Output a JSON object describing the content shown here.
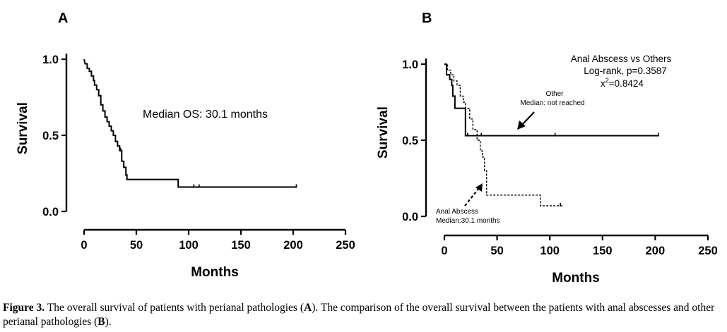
{
  "chart_data": [
    {
      "type": "line",
      "panel_label": "A",
      "xlabel": "Months",
      "ylabel": "Survival",
      "xlim": [
        0,
        250
      ],
      "ylim": [
        0.0,
        1.0
      ],
      "xticks": [
        0,
        50,
        100,
        150,
        200,
        250
      ],
      "yticks": [
        0.0,
        0.5,
        1.0
      ],
      "xtick_labels": [
        "0",
        "50",
        "100",
        "150",
        "200",
        "250"
      ],
      "ytick_labels": [
        "0.0",
        "0.5",
        "1.0"
      ],
      "grid": false,
      "step": true,
      "annotations": [
        {
          "text": "Median OS: 30.1 months"
        }
      ],
      "series": [
        {
          "style": "solid",
          "points": [
            [
              0,
              1.0
            ],
            [
              1,
              0.97
            ],
            [
              3,
              0.97
            ],
            [
              3,
              0.94
            ],
            [
              5,
              0.94
            ],
            [
              5,
              0.92
            ],
            [
              7,
              0.92
            ],
            [
              7,
              0.89
            ],
            [
              9,
              0.89
            ],
            [
              9,
              0.86
            ],
            [
              10,
              0.86
            ],
            [
              10,
              0.83
            ],
            [
              12,
              0.83
            ],
            [
              12,
              0.8
            ],
            [
              14,
              0.8
            ],
            [
              14,
              0.76
            ],
            [
              16,
              0.76
            ],
            [
              16,
              0.7
            ],
            [
              18,
              0.7
            ],
            [
              18,
              0.66
            ],
            [
              20,
              0.66
            ],
            [
              20,
              0.62
            ],
            [
              22,
              0.62
            ],
            [
              22,
              0.59
            ],
            [
              24,
              0.59
            ],
            [
              24,
              0.56
            ],
            [
              26,
              0.56
            ],
            [
              26,
              0.53
            ],
            [
              28,
              0.53
            ],
            [
              28,
              0.5
            ],
            [
              30,
              0.5
            ],
            [
              30,
              0.46
            ],
            [
              32,
              0.46
            ],
            [
              32,
              0.43
            ],
            [
              34,
              0.43
            ],
            [
              34,
              0.4
            ],
            [
              36,
              0.4
            ],
            [
              36,
              0.33
            ],
            [
              38,
              0.33
            ],
            [
              38,
              0.29
            ],
            [
              40,
              0.29
            ],
            [
              40,
              0.24
            ],
            [
              41,
              0.24
            ],
            [
              41,
              0.21
            ],
            [
              90,
              0.21
            ],
            [
              90,
              0.16
            ],
            [
              203,
              0.16
            ]
          ],
          "censor_x": [
            35,
            105,
            110,
            203
          ]
        }
      ]
    },
    {
      "type": "line",
      "panel_label": "B",
      "xlabel": "Months",
      "ylabel": "Survival",
      "xlim": [
        0,
        250
      ],
      "ylim": [
        0.0,
        1.0
      ],
      "xticks": [
        0,
        50,
        100,
        150,
        200,
        250
      ],
      "yticks": [
        0.0,
        0.5,
        1.0
      ],
      "xtick_labels": [
        "0",
        "50",
        "100",
        "150",
        "200",
        "250"
      ],
      "ytick_labels": [
        "0.0",
        "0.5",
        "1.0"
      ],
      "grid": false,
      "step": true,
      "stats_text": [
        "Anal Abscess vs Others",
        "Log-rank, p=0.3587",
        "=0.8424"
      ],
      "stats_chi_symbol": "x",
      "stats_chi_exp": "2",
      "annotations": [
        {
          "text": "Other",
          "subtext": "Median: not reached"
        },
        {
          "text": "Anal Abscess",
          "subtext": "Median:30.1 months"
        }
      ],
      "series": [
        {
          "style": "solid",
          "points": [
            [
              0,
              1.0
            ],
            [
              2,
              1.0
            ],
            [
              2,
              0.93
            ],
            [
              5,
              0.93
            ],
            [
              5,
              0.9
            ],
            [
              7,
              0.9
            ],
            [
              7,
              0.86
            ],
            [
              8,
              0.86
            ],
            [
              8,
              0.79
            ],
            [
              10,
              0.79
            ],
            [
              10,
              0.71
            ],
            [
              20,
              0.71
            ],
            [
              20,
              0.53
            ],
            [
              203,
              0.53
            ]
          ],
          "censor_x": [
            22,
            35,
            105,
            203
          ]
        },
        {
          "style": "dashed",
          "points": [
            [
              0,
              1.0
            ],
            [
              3,
              1.0
            ],
            [
              3,
              0.96
            ],
            [
              6,
              0.96
            ],
            [
              6,
              0.93
            ],
            [
              9,
              0.93
            ],
            [
              9,
              0.89
            ],
            [
              12,
              0.89
            ],
            [
              12,
              0.86
            ],
            [
              15,
              0.86
            ],
            [
              15,
              0.79
            ],
            [
              18,
              0.79
            ],
            [
              18,
              0.75
            ],
            [
              20,
              0.75
            ],
            [
              20,
              0.71
            ],
            [
              24,
              0.71
            ],
            [
              24,
              0.64
            ],
            [
              27,
              0.64
            ],
            [
              27,
              0.57
            ],
            [
              31,
              0.57
            ],
            [
              31,
              0.5
            ],
            [
              34,
              0.5
            ],
            [
              34,
              0.43
            ],
            [
              36,
              0.43
            ],
            [
              36,
              0.39
            ],
            [
              38,
              0.39
            ],
            [
              38,
              0.3
            ],
            [
              40,
              0.3
            ],
            [
              40,
              0.14
            ],
            [
              91,
              0.14
            ],
            [
              91,
              0.07
            ],
            [
              112,
              0.07
            ]
          ],
          "censor_x": [
            110
          ]
        }
      ]
    }
  ],
  "caption": {
    "figure_label": "Figure 3.",
    "text_1": " The overall survival of patients with perianal pathologies (",
    "ref_a": "A",
    "text_2": "). The comparison of the overall survival between the patients with anal abscesses and other perianal pathologies (",
    "ref_b": "B",
    "text_3": ")."
  }
}
